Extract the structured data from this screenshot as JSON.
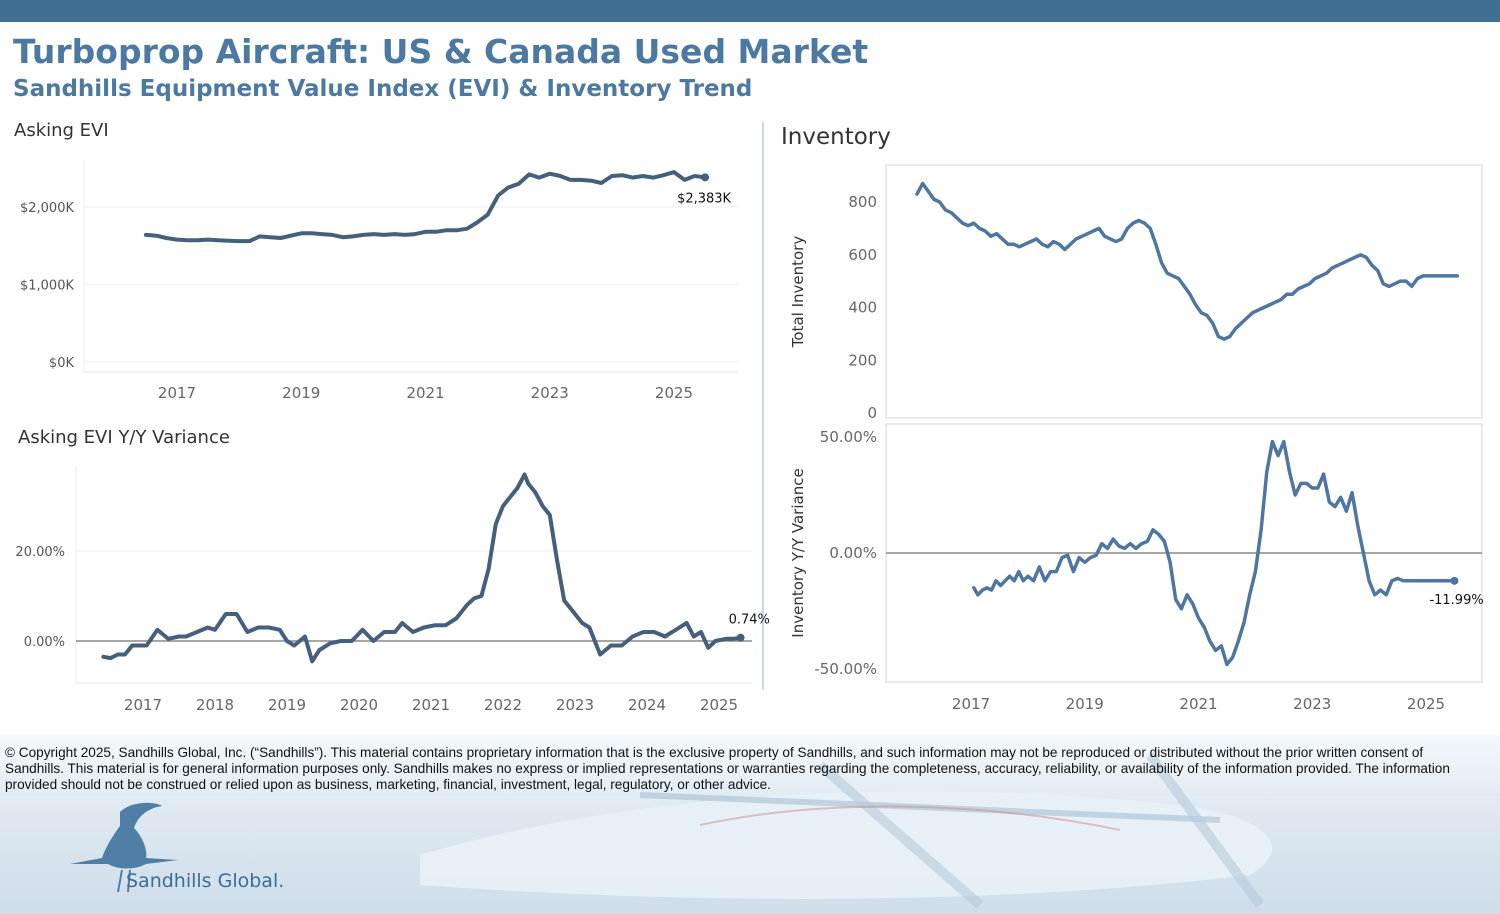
{
  "header": {
    "title": "Turboprop Aircraft: US & Canada Used Market",
    "subtitle": "Sandhills Equipment Value Index (EVI) & Inventory Trend"
  },
  "panels": {
    "asking_evi_title": "Asking EVI",
    "asking_evi_yy_title": "Asking EVI Y/Y Variance",
    "inventory_title": "Inventory"
  },
  "footer": {
    "copyright": "© Copyright 2025, Sandhills Global, Inc. (“Sandhills”). This material contains proprietary information that is the exclusive property of Sandhills, and such information may not be reproduced or distributed without the prior written consent of Sandhills. This material is for general information purposes only. Sandhills makes no express or implied representations or warranties regarding the completeness, accuracy, reliability, or availability of the information provided. The information provided should not be construed or relied upon as business, marketing, financial, investment, legal, regulatory, or other advice.",
    "logo_text": "Sandhills Global."
  },
  "colors": {
    "brand": "#4c79a2",
    "topbar": "#3f6f92",
    "evi_line": "#44607c",
    "inventory_line": "#4f76a0"
  },
  "chart_data": [
    {
      "id": "asking-evi",
      "type": "line",
      "title": "Asking EVI",
      "xlabel": "",
      "ylabel": "",
      "xlim": [
        2016.0,
        2026.0
      ],
      "ylim": [
        0,
        2600
      ],
      "yticks": [
        0,
        1000,
        2000
      ],
      "ytick_labels": [
        "$0K",
        "$1,000K",
        "$2,000K"
      ],
      "xticks": [
        2017,
        2019,
        2021,
        2023,
        2025
      ],
      "end_label": "$2,383K",
      "x": [
        2016.5,
        2016.67,
        2016.83,
        2017.0,
        2017.17,
        2017.33,
        2017.5,
        2017.67,
        2017.83,
        2018.0,
        2018.17,
        2018.33,
        2018.5,
        2018.67,
        2018.83,
        2019.0,
        2019.17,
        2019.33,
        2019.5,
        2019.67,
        2019.83,
        2020.0,
        2020.17,
        2020.33,
        2020.5,
        2020.67,
        2020.83,
        2021.0,
        2021.17,
        2021.33,
        2021.5,
        2021.67,
        2021.83,
        2022.0,
        2022.17,
        2022.33,
        2022.5,
        2022.67,
        2022.83,
        2023.0,
        2023.17,
        2023.33,
        2023.5,
        2023.67,
        2023.83,
        2024.0,
        2024.17,
        2024.33,
        2024.5,
        2024.67,
        2024.83,
        2025.0,
        2025.17,
        2025.33,
        2025.5
      ],
      "y": [
        1640,
        1630,
        1600,
        1580,
        1570,
        1570,
        1580,
        1570,
        1565,
        1560,
        1560,
        1620,
        1610,
        1600,
        1630,
        1660,
        1660,
        1650,
        1640,
        1610,
        1620,
        1640,
        1650,
        1640,
        1650,
        1640,
        1650,
        1680,
        1680,
        1700,
        1700,
        1720,
        1800,
        1900,
        2150,
        2250,
        2300,
        2420,
        2380,
        2430,
        2400,
        2350,
        2350,
        2340,
        2310,
        2400,
        2410,
        2380,
        2400,
        2380,
        2410,
        2450,
        2350,
        2400,
        2383
      ]
    },
    {
      "id": "asking-evi-yy",
      "type": "line",
      "title": "Asking EVI Y/Y Variance",
      "xlabel": "",
      "ylabel": "",
      "xlim": [
        2016.0,
        2025.5
      ],
      "ylim": [
        -10,
        40
      ],
      "yticks": [
        0,
        20
      ],
      "ytick_labels": [
        "0.00%",
        "20.00%"
      ],
      "xticks": [
        2017,
        2018,
        2019,
        2020,
        2021,
        2022,
        2023,
        2024,
        2025
      ],
      "end_label": "0.74%",
      "x": [
        2016.45,
        2016.55,
        2016.65,
        2016.75,
        2016.85,
        2016.95,
        2017.05,
        2017.2,
        2017.35,
        2017.5,
        2017.6,
        2017.75,
        2017.9,
        2018.0,
        2018.15,
        2018.3,
        2018.45,
        2018.6,
        2018.75,
        2018.9,
        2019.0,
        2019.1,
        2019.25,
        2019.35,
        2019.45,
        2019.6,
        2019.75,
        2019.9,
        2020.05,
        2020.2,
        2020.35,
        2020.5,
        2020.6,
        2020.75,
        2020.9,
        2021.05,
        2021.2,
        2021.35,
        2021.5,
        2021.6,
        2021.7,
        2021.8,
        2021.9,
        2022.0,
        2022.1,
        2022.2,
        2022.3,
        2022.35,
        2022.45,
        2022.55,
        2022.65,
        2022.75,
        2022.85,
        2023.0,
        2023.1,
        2023.2,
        2023.35,
        2023.5,
        2023.65,
        2023.8,
        2023.95,
        2024.1,
        2024.25,
        2024.4,
        2024.55,
        2024.65,
        2024.75,
        2024.85,
        2024.95,
        2025.1,
        2025.2,
        2025.3
      ],
      "y": [
        -3.5,
        -3.8,
        -3,
        -3,
        -1,
        -1,
        -1,
        2.5,
        0.5,
        1,
        1,
        2,
        3,
        2.5,
        6,
        6,
        2,
        3,
        3,
        2.5,
        0,
        -1,
        1,
        -4.5,
        -2,
        -0.5,
        0,
        0,
        2.5,
        0,
        2,
        2,
        4,
        2,
        3,
        3.5,
        3.5,
        5,
        8,
        9.5,
        10,
        16,
        26,
        30,
        32,
        34,
        37,
        35,
        33,
        30,
        28,
        18,
        9,
        6,
        4,
        3,
        -3,
        -1,
        -1,
        1,
        2,
        2,
        1,
        2.5,
        4,
        1,
        2,
        -1.5,
        0,
        0.5,
        0.5,
        0.74
      ]
    },
    {
      "id": "inventory",
      "type": "line",
      "title": "Inventory",
      "xlabel": "",
      "ylabel": "Total Inventory",
      "xlim": [
        2015.5,
        2026.0
      ],
      "ylim": [
        0,
        900
      ],
      "yticks": [
        0,
        200,
        400,
        600,
        800
      ],
      "xticks": [
        2017,
        2019,
        2021,
        2023,
        2025
      ],
      "x": [
        2016.05,
        2016.15,
        2016.25,
        2016.35,
        2016.45,
        2016.55,
        2016.65,
        2016.75,
        2016.85,
        2016.95,
        2017.05,
        2017.15,
        2017.25,
        2017.35,
        2017.45,
        2017.55,
        2017.65,
        2017.75,
        2017.85,
        2017.95,
        2018.05,
        2018.15,
        2018.25,
        2018.35,
        2018.45,
        2018.55,
        2018.65,
        2018.75,
        2018.85,
        2018.95,
        2019.05,
        2019.15,
        2019.25,
        2019.35,
        2019.45,
        2019.55,
        2019.65,
        2019.75,
        2019.85,
        2019.95,
        2020.05,
        2020.15,
        2020.25,
        2020.35,
        2020.45,
        2020.55,
        2020.65,
        2020.75,
        2020.85,
        2020.95,
        2021.05,
        2021.15,
        2021.25,
        2021.35,
        2021.45,
        2021.55,
        2021.65,
        2021.75,
        2021.85,
        2021.95,
        2022.05,
        2022.15,
        2022.25,
        2022.35,
        2022.45,
        2022.55,
        2022.65,
        2022.75,
        2022.85,
        2022.95,
        2023.05,
        2023.15,
        2023.25,
        2023.35,
        2023.45,
        2023.55,
        2023.65,
        2023.75,
        2023.85,
        2023.95,
        2024.05,
        2024.15,
        2024.25,
        2024.35,
        2024.45,
        2024.55,
        2024.65,
        2024.75,
        2024.85,
        2024.95,
        2025.05,
        2025.15,
        2025.25,
        2025.35,
        2025.45,
        2025.55
      ],
      "y": [
        830,
        870,
        840,
        810,
        800,
        770,
        760,
        740,
        720,
        710,
        720,
        700,
        690,
        670,
        680,
        660,
        640,
        640,
        630,
        640,
        650,
        660,
        640,
        630,
        650,
        640,
        620,
        640,
        660,
        670,
        680,
        690,
        700,
        670,
        660,
        650,
        660,
        700,
        720,
        730,
        720,
        700,
        640,
        570,
        530,
        520,
        510,
        480,
        450,
        410,
        380,
        370,
        340,
        290,
        280,
        290,
        320,
        340,
        360,
        380,
        390,
        400,
        410,
        420,
        430,
        450,
        450,
        470,
        480,
        490,
        510,
        520,
        530,
        550,
        560,
        570,
        580,
        590,
        600,
        590,
        560,
        540,
        490,
        480,
        490,
        500,
        500,
        480,
        510,
        520,
        520,
        520,
        520,
        520,
        520,
        520
      ],
      "end_label": ""
    },
    {
      "id": "inventory-yy",
      "type": "line",
      "title": "",
      "xlabel": "",
      "ylabel": "Inventory  Y/Y Variance",
      "xlim": [
        2015.5,
        2026.0
      ],
      "ylim": [
        -57,
        52
      ],
      "yticks": [
        -50,
        0,
        50
      ],
      "ytick_labels": [
        "-50.00%",
        "0.00%",
        "50.00%"
      ],
      "xticks": [
        2017,
        2019,
        2021,
        2023,
        2025
      ],
      "end_label": "-11.99%",
      "x": [
        2017.05,
        2017.12,
        2017.2,
        2017.28,
        2017.36,
        2017.44,
        2017.52,
        2017.6,
        2017.68,
        2017.76,
        2017.84,
        2017.92,
        2018.0,
        2018.1,
        2018.2,
        2018.3,
        2018.4,
        2018.5,
        2018.6,
        2018.7,
        2018.8,
        2018.9,
        2019.0,
        2019.1,
        2019.2,
        2019.3,
        2019.4,
        2019.5,
        2019.6,
        2019.7,
        2019.8,
        2019.9,
        2020.0,
        2020.1,
        2020.2,
        2020.3,
        2020.4,
        2020.5,
        2020.6,
        2020.7,
        2020.8,
        2020.9,
        2021.0,
        2021.1,
        2021.2,
        2021.3,
        2021.4,
        2021.5,
        2021.6,
        2021.7,
        2021.8,
        2021.9,
        2022.0,
        2022.1,
        2022.2,
        2022.3,
        2022.4,
        2022.5,
        2022.6,
        2022.7,
        2022.8,
        2022.9,
        2023.0,
        2023.1,
        2023.2,
        2023.3,
        2023.4,
        2023.5,
        2023.6,
        2023.7,
        2023.8,
        2023.9,
        2024.0,
        2024.1,
        2024.2,
        2024.3,
        2024.4,
        2024.5,
        2024.6,
        2024.7,
        2024.8,
        2024.9,
        2025.0,
        2025.1,
        2025.2,
        2025.3,
        2025.4,
        2025.5
      ],
      "y": [
        -15,
        -18,
        -16,
        -15,
        -16,
        -12,
        -14,
        -12,
        -10,
        -12,
        -8,
        -12,
        -10,
        -12,
        -6,
        -12,
        -8,
        -8,
        -2,
        -1,
        -8,
        -2,
        -4,
        -2,
        -1,
        4,
        2,
        6,
        3,
        2,
        4,
        2,
        4,
        5,
        10,
        8,
        5,
        -4,
        -20,
        -24,
        -18,
        -22,
        -28,
        -32,
        -38,
        -42,
        -40,
        -48,
        -45,
        -38,
        -30,
        -18,
        -8,
        10,
        35,
        48,
        42,
        48,
        35,
        25,
        30,
        30,
        28,
        28,
        34,
        22,
        20,
        24,
        18,
        26,
        12,
        0,
        -12,
        -18,
        -16,
        -18,
        -12,
        -11,
        -12,
        -12,
        -12,
        -12,
        -12,
        -12,
        -12,
        -11.99,
        -11.99,
        -11.99
      ]
    }
  ]
}
